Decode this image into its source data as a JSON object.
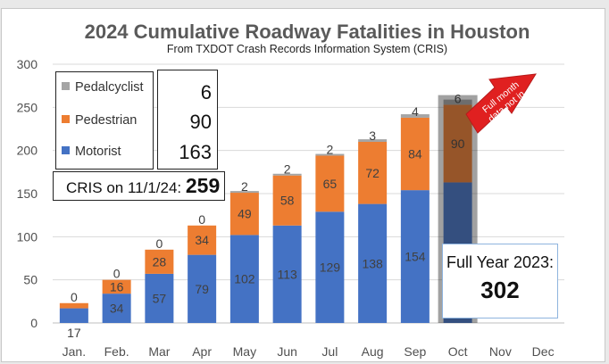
{
  "chart_data": {
    "type": "bar",
    "stacked": true,
    "title": "2024 Cumulative Roadway Fatalities in Houston",
    "subtitle": "From TXDOT Crash Records Information System (CRIS)",
    "categories": [
      "Jan.",
      "Feb.",
      "Mar",
      "Apr",
      "May",
      "Jun",
      "Jul",
      "Aug",
      "Sep",
      "Oct",
      "Nov",
      "Dec"
    ],
    "ylim": [
      0,
      300
    ],
    "yticks": [
      0,
      50,
      100,
      150,
      200,
      250,
      300
    ],
    "grid": true,
    "series": [
      {
        "name": "Motorist",
        "color": "#4472c4",
        "values": [
          17,
          34,
          57,
          79,
          102,
          113,
          129,
          138,
          154,
          163,
          null,
          null
        ],
        "labels": [
          "17",
          "34",
          "57",
          "79",
          "102",
          "113",
          "129",
          "138",
          "154",
          "",
          "",
          ""
        ]
      },
      {
        "name": "Pedestrian",
        "color": "#ed7d31",
        "values": [
          6,
          16,
          28,
          34,
          49,
          58,
          65,
          72,
          84,
          90,
          null,
          null
        ],
        "labels": [
          "",
          "16",
          "28",
          "34",
          "49",
          "58",
          "65",
          "72",
          "84",
          "90",
          "",
          ""
        ]
      },
      {
        "name": "Pedalcyclist",
        "color": "#a5a5a5",
        "values": [
          0,
          0,
          0,
          0,
          2,
          2,
          2,
          3,
          4,
          6,
          null,
          null
        ],
        "labels": [
          "0",
          "0",
          "0",
          "0",
          "2",
          "2",
          "2",
          "3",
          "4",
          "6",
          "",
          ""
        ]
      }
    ],
    "highlight_category": "Oct"
  },
  "legend": {
    "items": [
      {
        "label": "Pedalcyclist",
        "color": "#a5a5a5"
      },
      {
        "label": "Pedestrian",
        "color": "#ed7d31"
      },
      {
        "label": "Motorist",
        "color": "#4472c4"
      }
    ],
    "counts": [
      "6",
      "90",
      "163"
    ]
  },
  "cris": {
    "label": "CRIS on 11/1/24:",
    "value": "259"
  },
  "full_year": {
    "label": "Full Year 2023:",
    "value": "302"
  },
  "callout": {
    "line1": "Full month",
    "line2": "data not in.",
    "fill": "#e02020"
  }
}
